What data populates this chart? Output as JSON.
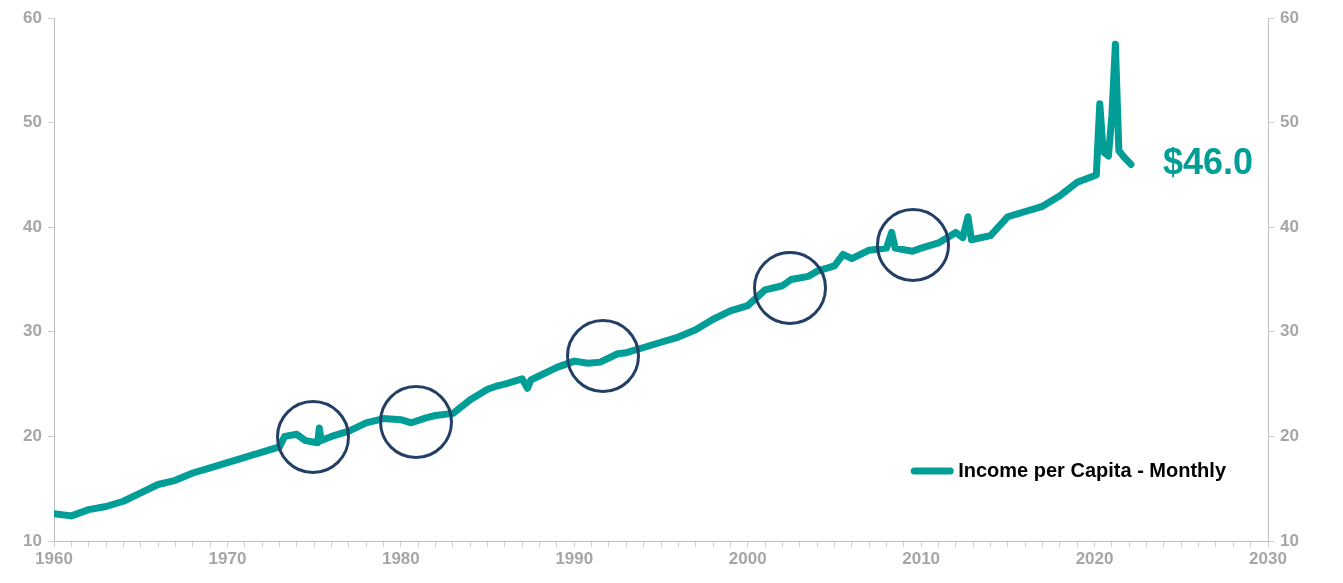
{
  "chart_data": {
    "type": "line",
    "x": [
      1960,
      1961,
      1962,
      1963,
      1964,
      1965,
      1966,
      1967,
      1968,
      1969,
      1970,
      1971,
      1972,
      1973,
      1973.3,
      1974,
      1974.5,
      1975.2,
      1975.3,
      1975.4,
      1976,
      1977,
      1978,
      1979,
      1980,
      1980.6,
      1981.5,
      1982,
      1983,
      1984,
      1985,
      1985.5,
      1986,
      1987,
      1987.3,
      1987.5,
      1988,
      1989,
      1990,
      1990.8,
      1991.5,
      1992.5,
      1993,
      1994,
      1995,
      1996,
      1997,
      1998,
      1999,
      2000,
      2001,
      2002,
      2002.5,
      2003.5,
      2004,
      2005,
      2005.5,
      2006,
      2007,
      2008,
      2008.3,
      2008.5,
      2009.5,
      2010,
      2011,
      2012,
      2012.4,
      2012.7,
      2012.9,
      2014,
      2015,
      2016,
      2017,
      2018,
      2019,
      2020.1,
      2020.3,
      2020.5,
      2020.8,
      2021.0,
      2021.2,
      2021.4,
      2021.7,
      2022.1
    ],
    "series": [
      {
        "name": "Income per Capita - Monthly",
        "color": "#009e96",
        "values": [
          12.6,
          12.4,
          13.0,
          13.3,
          13.8,
          14.6,
          15.4,
          15.8,
          16.5,
          17.0,
          17.5,
          18.0,
          18.5,
          19.0,
          20.0,
          20.2,
          19.6,
          19.4,
          20.8,
          19.6,
          20.0,
          20.5,
          21.3,
          21.7,
          21.6,
          21.3,
          21.8,
          22.0,
          22.2,
          23.5,
          24.5,
          24.8,
          25.0,
          25.5,
          24.6,
          25.4,
          25.8,
          26.6,
          27.2,
          27.0,
          27.1,
          27.9,
          28.0,
          28.5,
          29.0,
          29.5,
          30.2,
          31.2,
          32.0,
          32.5,
          34.0,
          34.4,
          35.0,
          35.3,
          35.8,
          36.3,
          37.4,
          37.0,
          37.8,
          38.0,
          39.5,
          38.0,
          37.7,
          38.0,
          38.5,
          39.5,
          39.0,
          41.0,
          38.8,
          39.2,
          41.0,
          41.5,
          42.0,
          43.0,
          44.3,
          45.0,
          51.8,
          47.2,
          46.8,
          50.7,
          57.5,
          47.3,
          46.7,
          46.0
        ]
      }
    ],
    "xlim": [
      1960,
      2030
    ],
    "xticks": [
      1960,
      {
        "value": 1961,
        "label": null
      },
      {
        "value": 1962,
        "label": null
      },
      {
        "value": 1963,
        "label": null
      },
      {
        "value": 1964,
        "label": null
      },
      {
        "value": 1965,
        "label": null
      },
      {
        "value": 1966,
        "label": null
      },
      {
        "value": 1967,
        "label": null
      },
      {
        "value": 1968,
        "label": null
      },
      {
        "value": 1969,
        "label": null
      },
      1970,
      {
        "value": 1971,
        "label": null
      },
      {
        "value": 1972,
        "label": null
      },
      {
        "value": 1973,
        "label": null
      },
      {
        "value": 1974,
        "label": null
      },
      {
        "value": 1975,
        "label": null
      },
      {
        "value": 1976,
        "label": null
      },
      {
        "value": 1977,
        "label": null
      },
      {
        "value": 1978,
        "label": null
      },
      {
        "value": 1979,
        "label": null
      },
      1980,
      {
        "value": 1981,
        "label": null
      },
      {
        "value": 1982,
        "label": null
      },
      {
        "value": 1983,
        "label": null
      },
      {
        "value": 1984,
        "label": null
      },
      {
        "value": 1985,
        "label": null
      },
      {
        "value": 1986,
        "label": null
      },
      {
        "value": 1987,
        "label": null
      },
      {
        "value": 1988,
        "label": null
      },
      {
        "value": 1989,
        "label": null
      },
      1990,
      {
        "value": 1991,
        "label": null
      },
      {
        "value": 1992,
        "label": null
      },
      {
        "value": 1993,
        "label": null
      },
      {
        "value": 1994,
        "label": null
      },
      {
        "value": 1995,
        "label": null
      },
      {
        "value": 1996,
        "label": null
      },
      {
        "value": 1997,
        "label": null
      },
      {
        "value": 1998,
        "label": null
      },
      {
        "value": 1999,
        "label": null
      },
      2000,
      {
        "value": 2001,
        "label": null
      },
      {
        "value": 2002,
        "label": null
      },
      {
        "value": 2003,
        "label": null
      },
      {
        "value": 2004,
        "label": null
      },
      {
        "value": 2005,
        "label": null
      },
      {
        "value": 2006,
        "label": null
      },
      {
        "value": 2007,
        "label": null
      },
      {
        "value": 2008,
        "label": null
      },
      {
        "value": 2009,
        "label": null
      },
      2010,
      {
        "value": 2011,
        "label": null
      },
      {
        "value": 2012,
        "label": null
      },
      {
        "value": 2013,
        "label": null
      },
      {
        "value": 2014,
        "label": null
      },
      {
        "value": 2015,
        "label": null
      },
      {
        "value": 2016,
        "label": null
      },
      {
        "value": 2017,
        "label": null
      },
      {
        "value": 2018,
        "label": null
      },
      {
        "value": 2019,
        "label": null
      },
      2020,
      {
        "value": 2021,
        "label": null
      },
      {
        "value": 2022,
        "label": null
      },
      {
        "value": 2023,
        "label": null
      },
      {
        "value": 2024,
        "label": null
      },
      {
        "value": 2025,
        "label": null
      },
      {
        "value": 2026,
        "label": null
      },
      {
        "value": 2027,
        "label": null
      },
      {
        "value": 2028,
        "label": null
      },
      {
        "value": 2029,
        "label": null
      },
      2030
    ],
    "ylim": [
      10,
      60
    ],
    "yticks": [
      10,
      20,
      30,
      40,
      50,
      60
    ],
    "y2lim": [
      10,
      60
    ],
    "y2ticks": [
      10,
      20,
      30,
      40,
      50,
      60
    ],
    "annotations": [
      {
        "text": "$46.0",
        "x": 2022.1,
        "y": 46.0
      }
    ],
    "legend": "bottom right",
    "grid": false,
    "marker": "none",
    "line_style": "solid"
  }
}
